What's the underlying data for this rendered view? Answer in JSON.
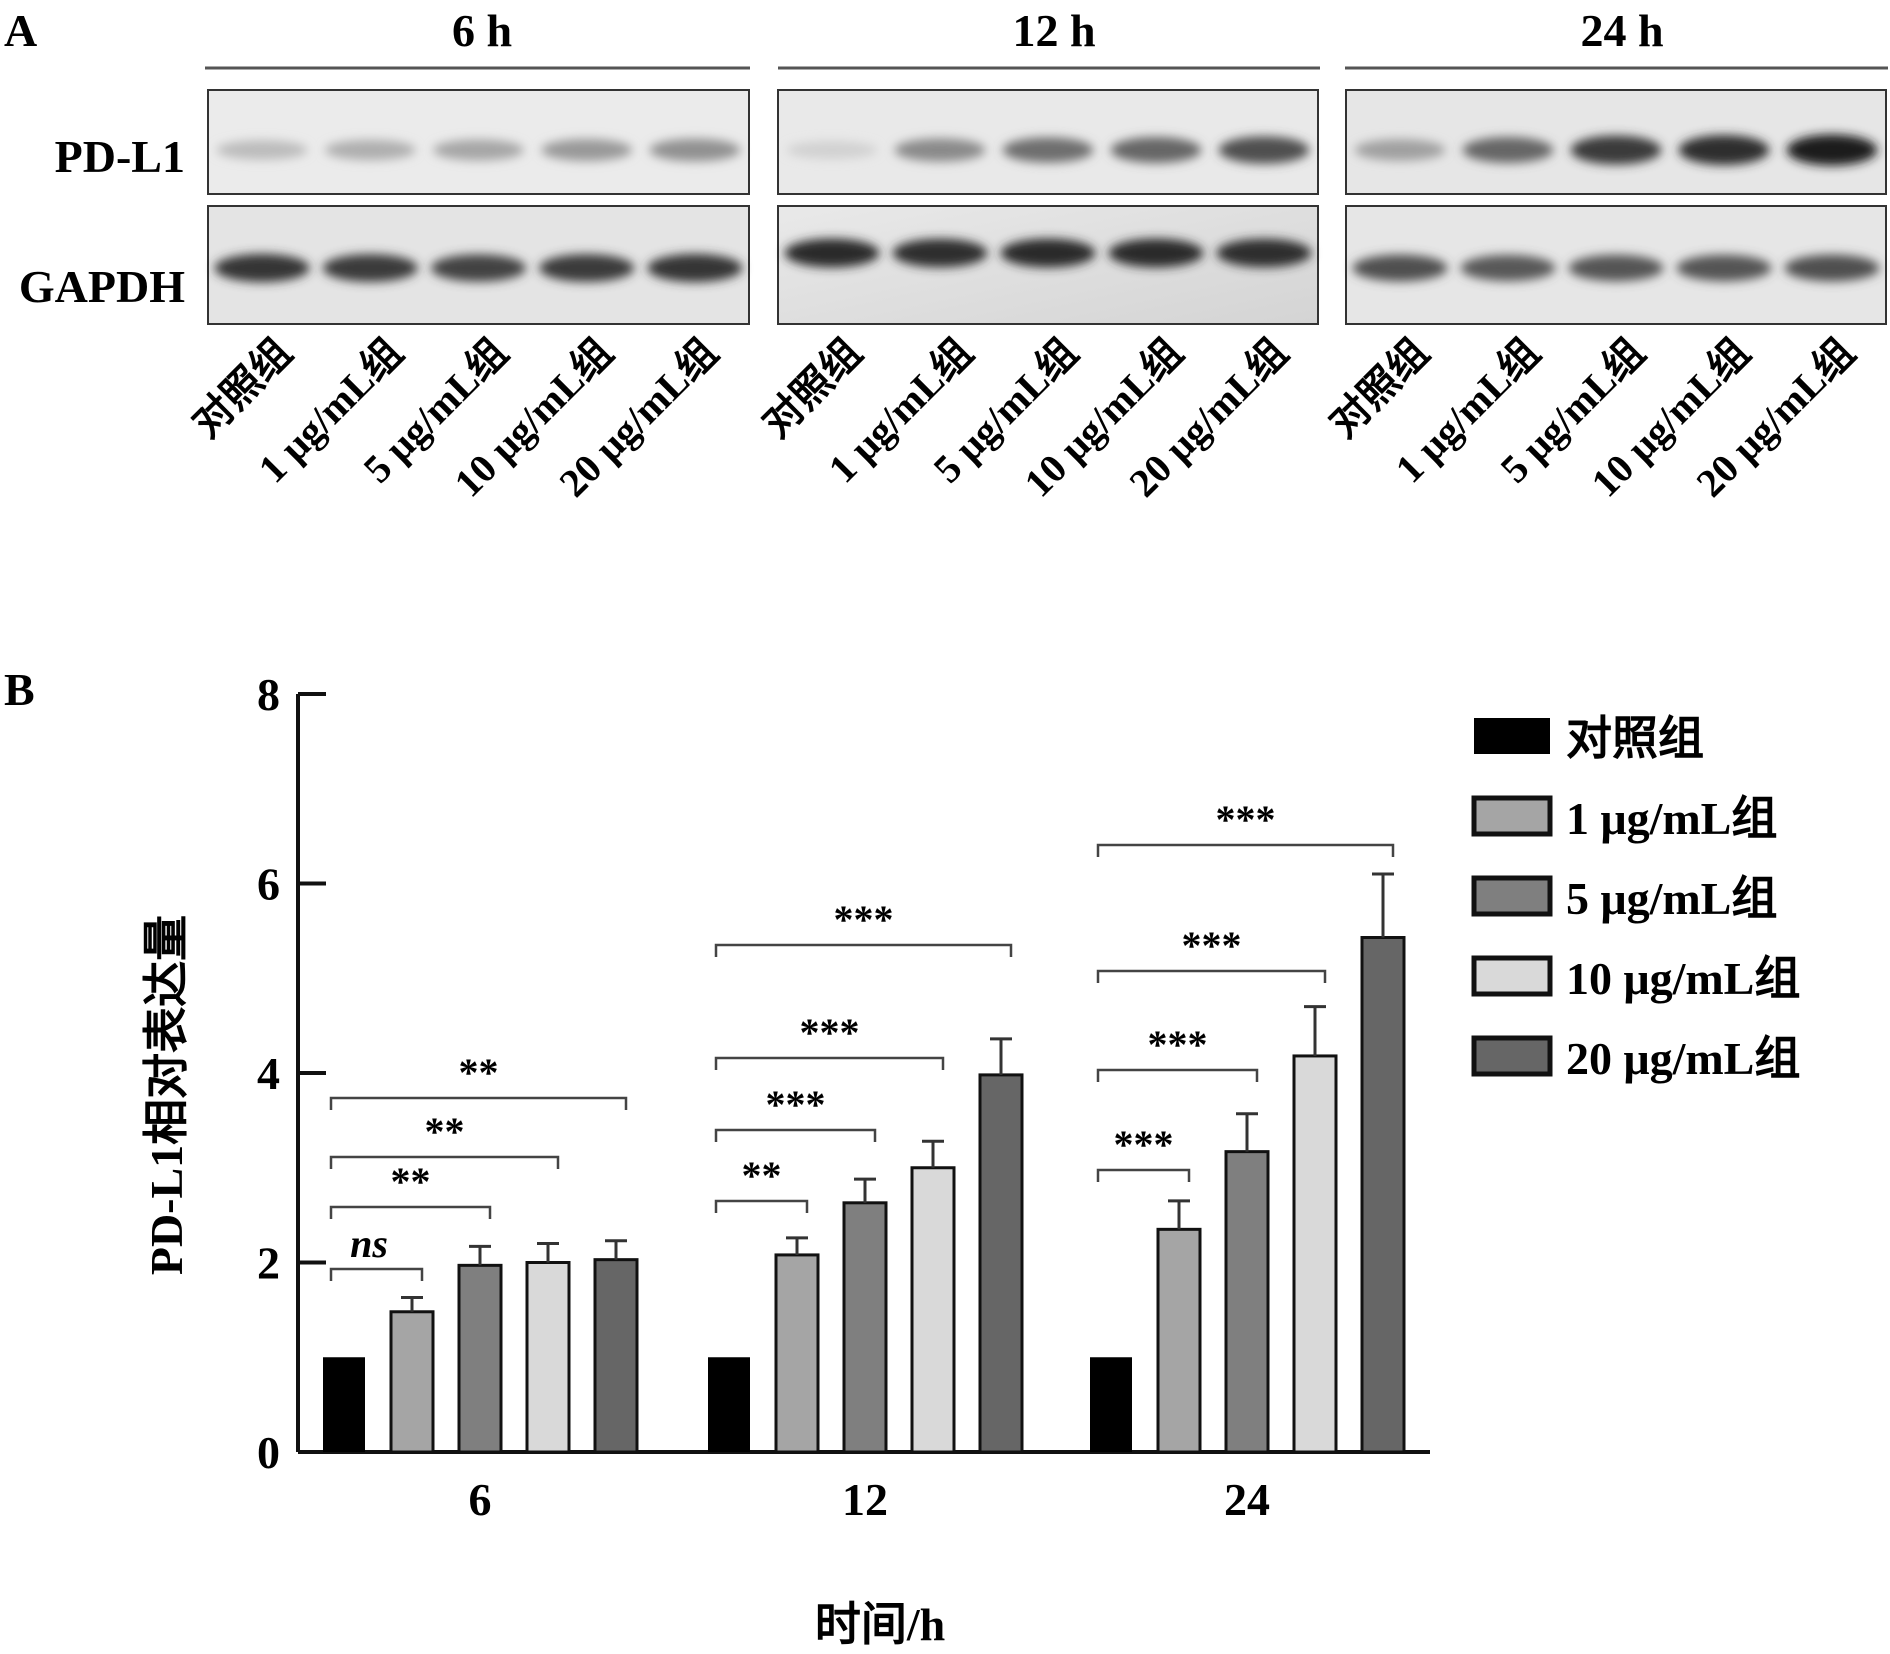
{
  "panel_a": {
    "label": "A",
    "time_labels": [
      "6 h",
      "12 h",
      "24 h"
    ],
    "proteins": [
      "PD-L1",
      "GAPDH"
    ],
    "lane_labels": [
      "对照组",
      "1  μg/mL组",
      "5  μg/mL组",
      "10  μg/mL组",
      "20  μg/mL组"
    ],
    "pdl1_band_intensity": [
      [
        0.22,
        0.28,
        0.32,
        0.38,
        0.42
      ],
      [
        0.12,
        0.45,
        0.58,
        0.62,
        0.72
      ],
      [
        0.35,
        0.62,
        0.82,
        0.88,
        0.95
      ]
    ],
    "gapdh_band_intensity": [
      [
        0.85,
        0.82,
        0.78,
        0.82,
        0.85
      ],
      [
        0.9,
        0.88,
        0.9,
        0.9,
        0.88
      ],
      [
        0.72,
        0.68,
        0.7,
        0.7,
        0.72
      ]
    ]
  },
  "panel_b": {
    "label": "B"
  },
  "chart_data": {
    "type": "bar",
    "categories": [
      "6",
      "12",
      "24"
    ],
    "xlabel": "时间/h",
    "ylabel": "PD-L1相对表达量",
    "ylim": [
      0,
      8
    ],
    "yticks": [
      0,
      2,
      4,
      6,
      8
    ],
    "series": [
      {
        "name": "对照组",
        "values": [
          1.0,
          1.0,
          1.0
        ],
        "errors": [
          0,
          0,
          0
        ],
        "color": "#000000"
      },
      {
        "name": "1  μg/mL组",
        "values": [
          1.48,
          2.08,
          2.35
        ],
        "errors": [
          0.15,
          0.18,
          0.3
        ],
        "color": "#a5a5a5"
      },
      {
        "name": "5  μg/mL组",
        "values": [
          1.97,
          2.63,
          3.17
        ],
        "errors": [
          0.2,
          0.25,
          0.4
        ],
        "color": "#7f7f7f"
      },
      {
        "name": "10  μg/mL组",
        "values": [
          2.0,
          3.0,
          4.18
        ],
        "errors": [
          0.2,
          0.28,
          0.52
        ],
        "color": "#d9d9d9"
      },
      {
        "name": "20  μg/mL组",
        "values": [
          2.03,
          3.98,
          5.43
        ],
        "errors": [
          0.2,
          0.38,
          0.67
        ],
        "color": "#666666"
      }
    ],
    "significance": [
      {
        "category": 0,
        "from": 0,
        "to": 1,
        "label": "ns"
      },
      {
        "category": 0,
        "from": 0,
        "to": 2,
        "label": "**"
      },
      {
        "category": 0,
        "from": 0,
        "to": 3,
        "label": "**"
      },
      {
        "category": 0,
        "from": 0,
        "to": 4,
        "label": "**"
      },
      {
        "category": 1,
        "from": 0,
        "to": 1,
        "label": "**"
      },
      {
        "category": 1,
        "from": 0,
        "to": 2,
        "label": "***"
      },
      {
        "category": 1,
        "from": 0,
        "to": 3,
        "label": "***"
      },
      {
        "category": 1,
        "from": 0,
        "to": 4,
        "label": "***"
      },
      {
        "category": 2,
        "from": 0,
        "to": 1,
        "label": "***"
      },
      {
        "category": 2,
        "from": 0,
        "to": 2,
        "label": "***"
      },
      {
        "category": 2,
        "from": 0,
        "to": 3,
        "label": "***"
      },
      {
        "category": 2,
        "from": 0,
        "to": 4,
        "label": "***"
      }
    ],
    "legend_position": "top-right"
  }
}
